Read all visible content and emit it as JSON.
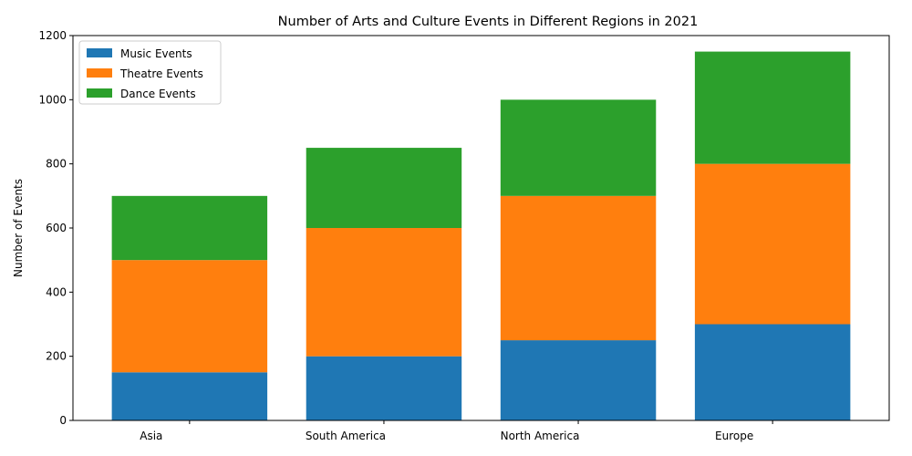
{
  "chart_data": {
    "type": "bar",
    "stacked": true,
    "title": "Number of Arts and Culture Events in Different Regions in 2021",
    "xlabel": "",
    "ylabel": "Number of Events",
    "categories": [
      "Asia",
      "South America",
      "North America",
      "Europe"
    ],
    "series": [
      {
        "name": "Music Events",
        "values": [
          150,
          200,
          250,
          300
        ],
        "color": "#1f77b4"
      },
      {
        "name": "Theatre Events",
        "values": [
          350,
          400,
          450,
          500
        ],
        "color": "#ff7f0e"
      },
      {
        "name": "Dance Events",
        "values": [
          200,
          250,
          300,
          350
        ],
        "color": "#2ca02c"
      }
    ],
    "ylim": [
      0,
      1200
    ],
    "yticks": [
      0,
      200,
      400,
      600,
      800,
      1000,
      1200
    ],
    "grid": false,
    "legend_position": "top-left"
  }
}
